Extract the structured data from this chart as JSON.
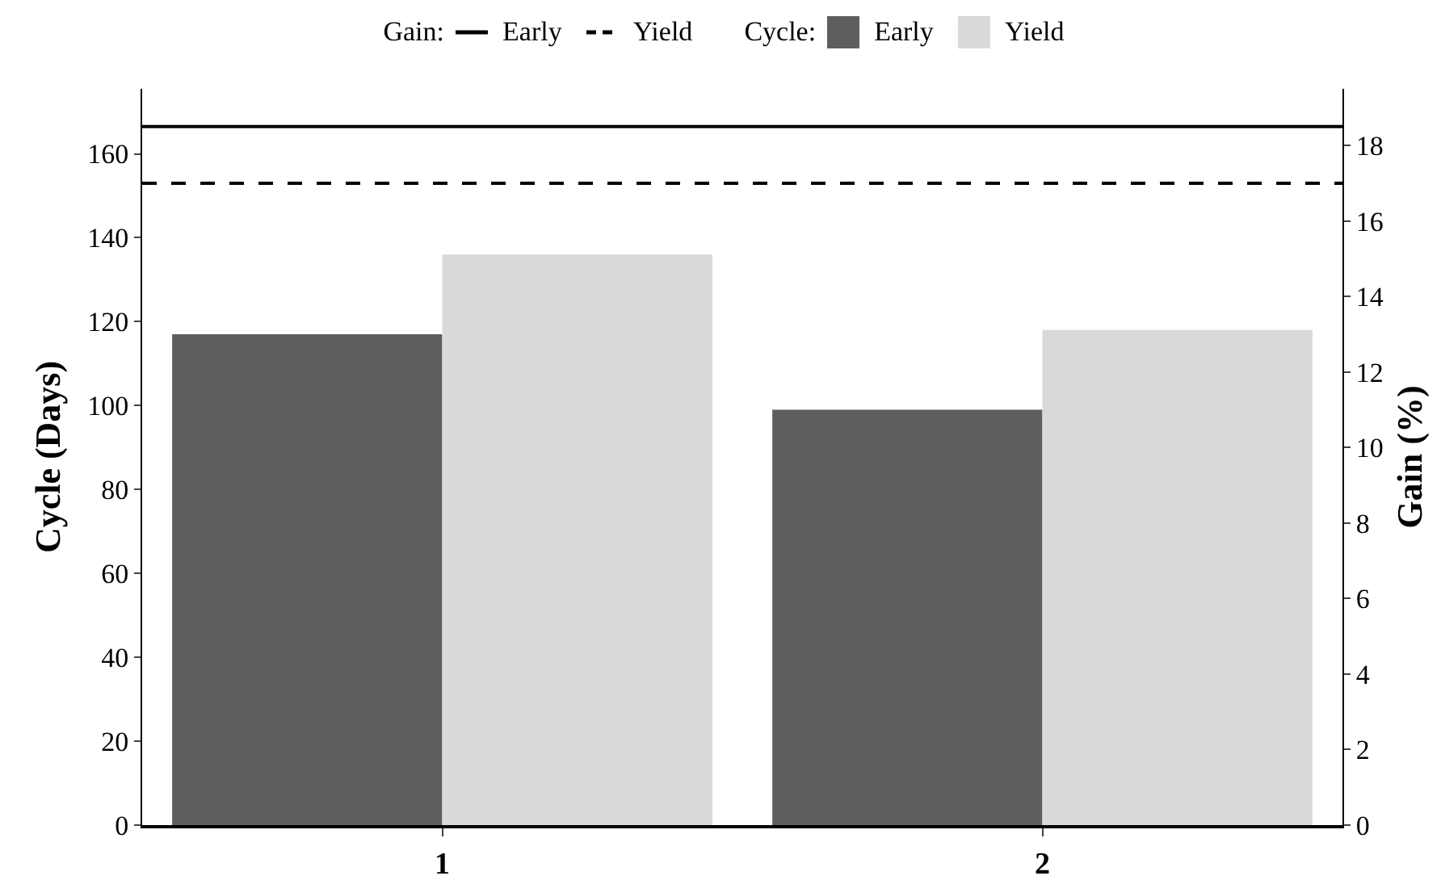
{
  "chart_data": {
    "type": "bar",
    "categories": [
      "1",
      "2"
    ],
    "ylabel": "Cycle (Days)",
    "y2label": "Gain (%)",
    "series": [
      {
        "name": "Early",
        "color": "#5e5e5e",
        "values": [
          117,
          99
        ]
      },
      {
        "name": "Yield",
        "color": "#d9d9d9",
        "values": [
          136,
          118
        ]
      }
    ],
    "ref_lines": [
      {
        "axis": "y2",
        "value": 18.5,
        "label": "Early",
        "color": "#000000",
        "line_style": "solid"
      },
      {
        "axis": "y2",
        "value": 17,
        "label": "Yield",
        "color": "#000000",
        "line_style": "dashed"
      }
    ],
    "annotations": [
      "Gain:",
      "Cycle:"
    ],
    "ylim": [
      0,
      175.5
    ],
    "yticks": [
      0,
      20,
      40,
      60,
      80,
      100,
      120,
      140,
      160
    ],
    "y2lim": [
      0,
      19.5
    ],
    "y2ticks": [
      0,
      2,
      4,
      6,
      8,
      10,
      12,
      14,
      16,
      18
    ],
    "grid": false,
    "legend": "top"
  }
}
